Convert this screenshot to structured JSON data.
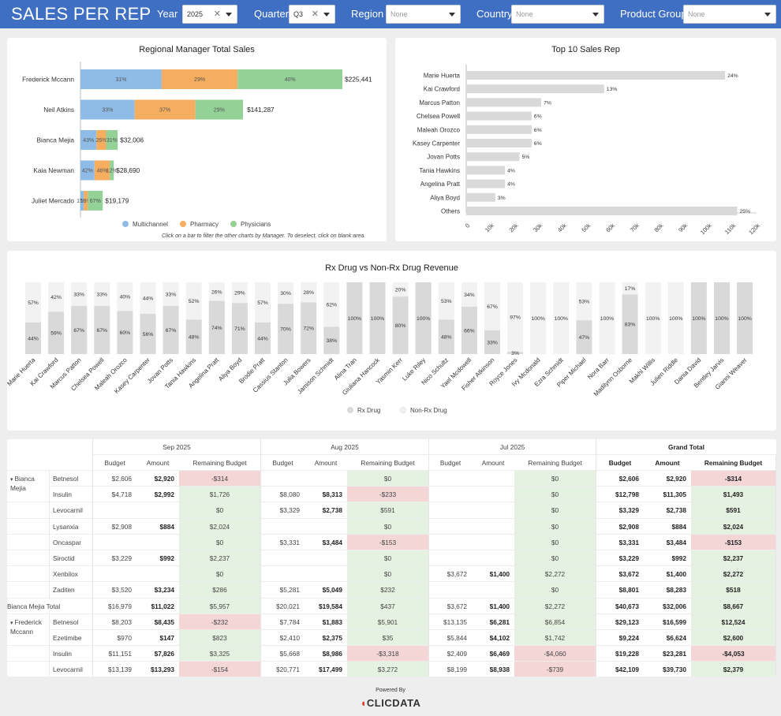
{
  "header": {
    "title": "SALES PER REP",
    "filters": [
      {
        "label": "Year",
        "value": "2025",
        "placeholder": false
      },
      {
        "label": "Quarter",
        "value": "Q3",
        "placeholder": false
      },
      {
        "label": "Region",
        "value": "None",
        "placeholder": true
      },
      {
        "label": "Country",
        "value": "None",
        "placeholder": true
      },
      {
        "label": "Product Group",
        "value": "None",
        "placeholder": true
      }
    ]
  },
  "colors": {
    "header": "#3f6fc3",
    "multichannel": "#8fbce6",
    "pharmacy": "#f5ad5f",
    "physicians": "#93d196",
    "negative": "#f4d6d7",
    "positive": "#e6f2e1",
    "bar_gray": "#d9d9d9",
    "bar_light": "#f2f2f2"
  },
  "regional": {
    "title": "Regional Manager Total Sales",
    "note": "Click on a bar to filter the other charts by Manager. To deselect, click on blank area."
  },
  "top10": {
    "title": "Top 10 Sales Rep"
  },
  "rx": {
    "title": "Rx Drug vs Non-Rx Drug Revenue"
  },
  "chart_data": [
    {
      "type": "bar",
      "orientation": "horizontal",
      "stacked": true,
      "title": "Regional Manager Total Sales",
      "categories": [
        "Frederick Mccann",
        "Neil Atkins",
        "Bianca Mejia",
        "Kaia Newman",
        "Juliet Mercado"
      ],
      "totals": [
        225441,
        141287,
        32006,
        28690,
        19179
      ],
      "total_labels": [
        "$225,441",
        "$141,287",
        "$32,006",
        "$28,690",
        "$19,179"
      ],
      "series": [
        {
          "name": "Multichannel",
          "percent": [
            31,
            33,
            43,
            42,
            15
          ]
        },
        {
          "name": "Pharmacy",
          "percent": [
            29,
            37,
            26,
            46,
            18
          ]
        },
        {
          "name": "Physicians",
          "percent": [
            40,
            29,
            31,
            12,
            67
          ]
        }
      ],
      "segment_labels": [
        [
          "31%",
          "29%",
          "40%"
        ],
        [
          "33%",
          "37%",
          "29%"
        ],
        [
          "43%",
          "26%",
          "31%"
        ],
        [
          "42%",
          "46%",
          "12%"
        ],
        [
          "15%",
          "18%",
          "67%"
        ]
      ],
      "legend": "bottom"
    },
    {
      "type": "bar",
      "orientation": "horizontal",
      "title": "Top 10 Sales Rep",
      "categories": [
        "Marie Huerta",
        "Kai Crawford",
        "Marcus Patton",
        "Chelsea Powell",
        "Maleah Orozco",
        "Kasey Carpenter",
        "Jovan Potts",
        "Tania Hawkins",
        "Angelina Pratt",
        "Aliya Boyd",
        "Others"
      ],
      "values": [
        107000,
        57000,
        31000,
        27000,
        27000,
        27000,
        22000,
        16000,
        16000,
        12000,
        112000
      ],
      "data_labels": [
        "24%",
        "13%",
        "7%",
        "6%",
        "6%",
        "6%",
        "5%",
        "4%",
        "4%",
        "3%",
        "25%"
      ],
      "xlim": [
        0,
        120000
      ],
      "x_ticks": [
        "0",
        "10k",
        "20k",
        "30k",
        "40k",
        "50k",
        "60k",
        "70k",
        "80k",
        "90k",
        "100k",
        "110k",
        "120k"
      ]
    },
    {
      "type": "bar",
      "stacked": true,
      "percent": true,
      "title": "Rx Drug vs Non-Rx Drug Revenue",
      "categories": [
        "Marie Huerta",
        "Kai Crawford",
        "Marcus Patton",
        "Chelsea Powell",
        "Maleah Orozco",
        "Kasey Carpenter",
        "Jovan Potts",
        "Tania Hawkins",
        "Angelina Pratt",
        "Aliya Boyd",
        "Brodie Pratt",
        "Cassius Stanton",
        "Julia Bowers",
        "Jamison Schmidt",
        "Alina Tran",
        "Giuliana Hancock",
        "Yasmin Kerr",
        "Luke Riley",
        "Nico Schultz",
        "Yael Mcdowell",
        "Fisher Atkinson",
        "Royce Jones",
        "Ivy Mcdonald",
        "Ezra Schmidt",
        "Piper Michael",
        "Nora Barr",
        "Madilynn Osborne",
        "Makhi Willis",
        "Julien Riddle",
        "Dania David",
        "Bentley Jarvis",
        "Gianni Weaver"
      ],
      "series": [
        {
          "name": "Rx Drug",
          "values": [
            44,
            59,
            67,
            67,
            60,
            56,
            67,
            48,
            74,
            71,
            44,
            70,
            72,
            38,
            100,
            100,
            80,
            100,
            48,
            66,
            33,
            3,
            0,
            0,
            47,
            0,
            83,
            0,
            0,
            100,
            100,
            100
          ]
        },
        {
          "name": "Non-Rx Drug",
          "values": [
            57,
            42,
            33,
            33,
            40,
            44,
            33,
            52,
            26,
            29,
            57,
            30,
            28,
            62,
            0,
            0,
            20,
            0,
            53,
            34,
            67,
            97,
            100,
            100,
            53,
            100,
            17,
            100,
            100,
            0,
            0,
            0
          ]
        }
      ],
      "ylim": [
        0,
        100
      ],
      "legend": "bottom"
    }
  ],
  "pivot": {
    "months": [
      "Sep 2025",
      "Aug 2025",
      "Jul 2025"
    ],
    "grand_total": "Grand Total",
    "subheaders": [
      "Budget",
      "Amount",
      "Remaining Budget"
    ],
    "rows": [
      {
        "manager": "Bianca Mejia",
        "product": "Betnesol",
        "cells": [
          "$2,606",
          "$2,920",
          "-$314",
          "",
          "",
          "$0",
          "",
          "",
          "$0",
          "$2,606",
          "$2,920",
          "-$314"
        ]
      },
      {
        "manager": "",
        "product": "Insulin",
        "cells": [
          "$4,718",
          "$2,992",
          "$1,726",
          "$8,080",
          "$8,313",
          "-$233",
          "",
          "",
          "$0",
          "$12,798",
          "$11,305",
          "$1,493"
        ]
      },
      {
        "manager": "",
        "product": "Levocarnil",
        "cells": [
          "",
          "",
          "$0",
          "$3,329",
          "$2,738",
          "$591",
          "",
          "",
          "$0",
          "$3,329",
          "$2,738",
          "$591"
        ]
      },
      {
        "manager": "",
        "product": "Lysanxia",
        "cells": [
          "$2,908",
          "$884",
          "$2,024",
          "",
          "",
          "$0",
          "",
          "",
          "$0",
          "$2,908",
          "$884",
          "$2,024"
        ]
      },
      {
        "manager": "",
        "product": "Oncaspar",
        "cells": [
          "",
          "",
          "$0",
          "$3,331",
          "$3,484",
          "-$153",
          "",
          "",
          "$0",
          "$3,331",
          "$3,484",
          "-$153"
        ]
      },
      {
        "manager": "",
        "product": "Siroctid",
        "cells": [
          "$3,229",
          "$992",
          "$2,237",
          "",
          "",
          "$0",
          "",
          "",
          "$0",
          "$3,229",
          "$992",
          "$2,237"
        ]
      },
      {
        "manager": "",
        "product": "Xenbilox",
        "cells": [
          "",
          "",
          "$0",
          "",
          "",
          "$0",
          "$3,672",
          "$1,400",
          "$2,272",
          "$3,672",
          "$1,400",
          "$2,272"
        ]
      },
      {
        "manager": "",
        "product": "Zaditen",
        "cells": [
          "$3,520",
          "$3,234",
          "$286",
          "$5,281",
          "$5,049",
          "$232",
          "",
          "",
          "$0",
          "$8,801",
          "$8,283",
          "$518"
        ]
      },
      {
        "manager": "Bianca Mejia Total",
        "product": "",
        "total": true,
        "cells": [
          "$16,979",
          "$11,022",
          "$5,957",
          "$20,021",
          "$19,584",
          "$437",
          "$3,672",
          "$1,400",
          "$2,272",
          "$40,673",
          "$32,006",
          "$8,667"
        ]
      },
      {
        "manager": "Frederick Mccann",
        "product": "Betnesol",
        "cells": [
          "$8,203",
          "$8,435",
          "-$232",
          "$7,784",
          "$1,883",
          "$5,901",
          "$13,135",
          "$6,281",
          "$6,854",
          "$29,123",
          "$16,599",
          "$12,524"
        ]
      },
      {
        "manager": "",
        "product": "Ezetimibe",
        "cells": [
          "$970",
          "$147",
          "$823",
          "$2,410",
          "$2,375",
          "$35",
          "$5,844",
          "$4,102",
          "$1,742",
          "$9,224",
          "$6,624",
          "$2,600"
        ]
      },
      {
        "manager": "",
        "product": "Insulin",
        "cells": [
          "$11,151",
          "$7,826",
          "$3,325",
          "$5,668",
          "$8,986",
          "-$3,318",
          "$2,409",
          "$6,469",
          "-$4,060",
          "$19,228",
          "$23,281",
          "-$4,053"
        ]
      },
      {
        "manager": "",
        "product": "Levocarnil",
        "cells": [
          "$13,139",
          "$13,293",
          "-$154",
          "$20,771",
          "$17,499",
          "$3,272",
          "$8,199",
          "$8,938",
          "-$739",
          "$42,109",
          "$39,730",
          "$2,379"
        ]
      }
    ]
  },
  "footer": {
    "powered": "Powered By",
    "logo": "CLICDATA"
  }
}
